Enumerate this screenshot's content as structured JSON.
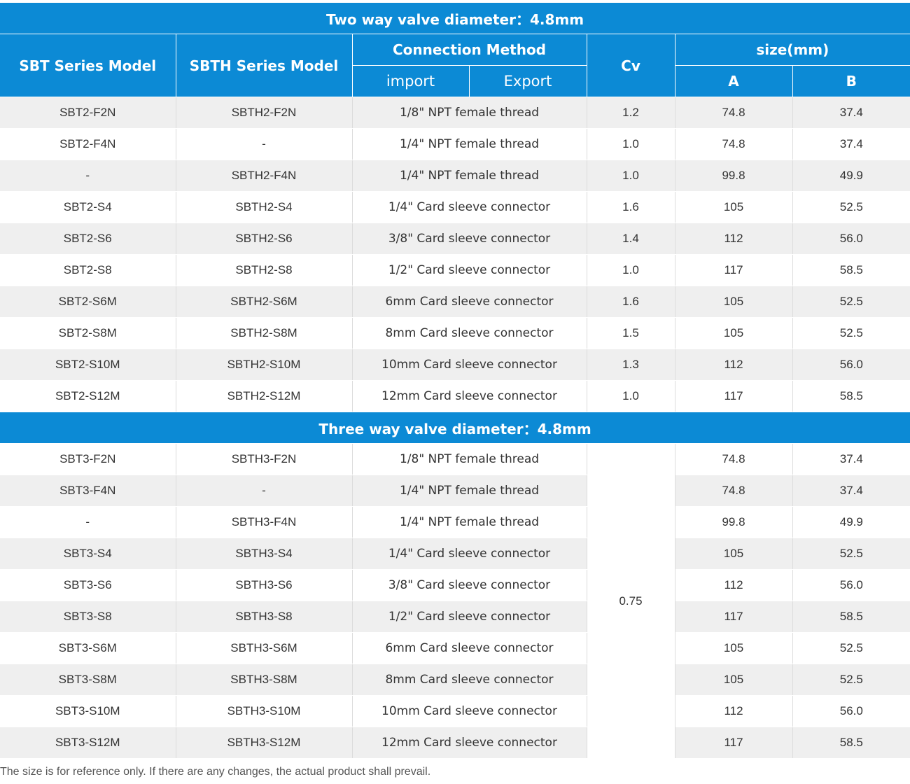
{
  "two_way": {
    "title": "Two way valve diameter：4.8mm",
    "rows": [
      {
        "sbt": "SBT2-F2N",
        "sbth": "SBTH2-F2N",
        "connection": "1/8\" NPT female thread",
        "cv": "1.2",
        "a": "74.8",
        "b": "37.4"
      },
      {
        "sbt": "SBT2-F4N",
        "sbth": "-",
        "connection": "1/4\" NPT female thread",
        "cv": "1.0",
        "a": "74.8",
        "b": "37.4"
      },
      {
        "sbt": "-",
        "sbth": "SBTH2-F4N",
        "connection": "1/4\" NPT female thread",
        "cv": "1.0",
        "a": "99.8",
        "b": "49.9"
      },
      {
        "sbt": "SBT2-S4",
        "sbth": "SBTH2-S4",
        "connection": "1/4\" Card sleeve connector",
        "cv": "1.6",
        "a": "105",
        "b": "52.5"
      },
      {
        "sbt": "SBT2-S6",
        "sbth": "SBTH2-S6",
        "connection": "3/8\" Card sleeve connector",
        "cv": "1.4",
        "a": "112",
        "b": "56.0"
      },
      {
        "sbt": "SBT2-S8",
        "sbth": "SBTH2-S8",
        "connection": "1/2\" Card sleeve connector",
        "cv": "1.0",
        "a": "117",
        "b": "58.5"
      },
      {
        "sbt": "SBT2-S6M",
        "sbth": "SBTH2-S6M",
        "connection": "6mm Card sleeve connector",
        "cv": "1.6",
        "a": "105",
        "b": "52.5"
      },
      {
        "sbt": "SBT2-S8M",
        "sbth": "SBTH2-S8M",
        "connection": "8mm Card sleeve connector",
        "cv": "1.5",
        "a": "105",
        "b": "52.5"
      },
      {
        "sbt": "SBT2-S10M",
        "sbth": "SBTH2-S10M",
        "connection": "10mm Card sleeve connector",
        "cv": "1.3",
        "a": "112",
        "b": "56.0"
      },
      {
        "sbt": "SBT2-S12M",
        "sbth": "SBTH2-S12M",
        "connection": "12mm Card sleeve connector",
        "cv": "1.0",
        "a": "117",
        "b": "58.5"
      }
    ]
  },
  "headers": {
    "sbt_model": "SBT Series Model",
    "sbth_model": "SBTH Series Model",
    "connection_method": "Connection Method",
    "import": "import",
    "export": "Export",
    "cv": "Cv",
    "size": "size(mm)",
    "a": "A",
    "b": "B"
  },
  "three_way": {
    "title": "Three way valve diameter：4.8mm",
    "cv": "0.75",
    "rows": [
      {
        "sbt": "SBT3-F2N",
        "sbth": "SBTH3-F2N",
        "connection": "1/8\" NPT female thread",
        "a": "74.8",
        "b": "37.4"
      },
      {
        "sbt": "SBT3-F4N",
        "sbth": "-",
        "connection": "1/4\" NPT female thread",
        "a": "74.8",
        "b": "37.4"
      },
      {
        "sbt": "-",
        "sbth": "SBTH3-F4N",
        "connection": "1/4\" NPT female thread",
        "a": "99.8",
        "b": "49.9"
      },
      {
        "sbt": "SBT3-S4",
        "sbth": "SBTH3-S4",
        "connection": "1/4\" Card sleeve connector",
        "a": "105",
        "b": "52.5"
      },
      {
        "sbt": "SBT3-S6",
        "sbth": "SBTH3-S6",
        "connection": "3/8\" Card sleeve connector",
        "a": "112",
        "b": "56.0"
      },
      {
        "sbt": "SBT3-S8",
        "sbth": "SBTH3-S8",
        "connection": "1/2\" Card sleeve connector",
        "a": "117",
        "b": "58.5"
      },
      {
        "sbt": "SBT3-S6M",
        "sbth": "SBTH3-S6M",
        "connection": "6mm Card sleeve connector",
        "a": "105",
        "b": "52.5"
      },
      {
        "sbt": "SBT3-S8M",
        "sbth": "SBTH3-S8M",
        "connection": "8mm Card sleeve connector",
        "a": "105",
        "b": "52.5"
      },
      {
        "sbt": "SBT3-S10M",
        "sbth": "SBTH3-S10M",
        "connection": "10mm Card sleeve connector",
        "a": "112",
        "b": "56.0"
      },
      {
        "sbt": "SBT3-S12M",
        "sbth": "SBTH3-S12M",
        "connection": "12mm Card sleeve connector",
        "a": "117",
        "b": "58.5"
      }
    ]
  },
  "footnote": "The size is for reference only. If there are any changes, the actual product shall prevail.",
  "colors": {
    "header_blue": "#0c8ad5",
    "row_alt": "#efefef",
    "text": "#333333"
  }
}
